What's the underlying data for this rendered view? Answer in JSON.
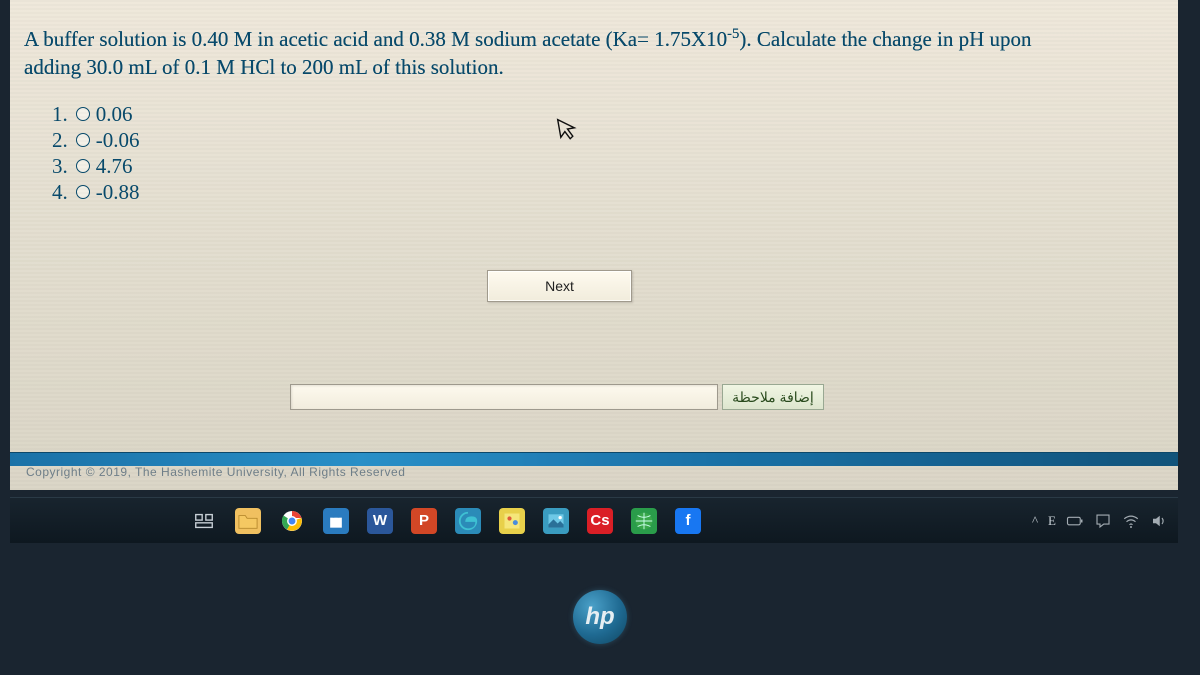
{
  "question": {
    "line1_a": "A buffer solution is 0.40 M in acetic acid and 0.38 M sodium acetate (Ka= 1.75X10",
    "line1_sup": "-5",
    "line1_b": "). Calculate the change in pH upon",
    "line2": "adding 30.0 mL of 0.1 M HCl to 200 mL of this solution."
  },
  "options": [
    {
      "num": "1.",
      "label": "0.06"
    },
    {
      "num": "2.",
      "label": "-0.06"
    },
    {
      "num": "3.",
      "label": "4.76"
    },
    {
      "num": "4.",
      "label": "-0.88"
    }
  ],
  "buttons": {
    "next": "Next",
    "add_note": "إضافة ملاحظة"
  },
  "footer": {
    "copyright": "Copyright © 2019, The Hashemite University, All Rights Reserved"
  },
  "taskbar": {
    "icons": [
      {
        "name": "task-view-icon",
        "bg": "transparent",
        "svg": "taskview"
      },
      {
        "name": "file-explorer-icon",
        "bg": "#f0c060",
        "svg": "folder"
      },
      {
        "name": "chrome-icon",
        "bg": "transparent",
        "svg": "chrome"
      },
      {
        "name": "store-icon",
        "bg": "#2a7bbf",
        "svg": "bag"
      },
      {
        "name": "word-icon",
        "bg": "#2b579a",
        "text": "W"
      },
      {
        "name": "powerpoint-icon",
        "bg": "#d24726",
        "text": "P"
      },
      {
        "name": "edge-icon",
        "bg": "#2b8bb8",
        "svg": "edge"
      },
      {
        "name": "paint-icon",
        "bg": "#e8d04a",
        "svg": "paint"
      },
      {
        "name": "photos-icon",
        "bg": "#3a9cc0",
        "svg": "photo"
      },
      {
        "name": "adobe-cc-icon",
        "bg": "#da1f26",
        "text": "Cs"
      },
      {
        "name": "globe-icon",
        "bg": "#2a9c4a",
        "svg": "globe"
      },
      {
        "name": "facebook-icon",
        "bg": "#1877f2",
        "text": "f"
      }
    ]
  },
  "tray": {
    "chevron": "^",
    "lang": "E",
    "items": [
      "battery",
      "network",
      "wifi",
      "sound"
    ]
  },
  "brand": "hp",
  "colors": {
    "question_text": "#0a4a6a",
    "page_bg_top": "#e8e2d5",
    "page_bg_bot": "#d5d0c2",
    "band": "#1b6fa3",
    "bezel": "#1a2530"
  }
}
